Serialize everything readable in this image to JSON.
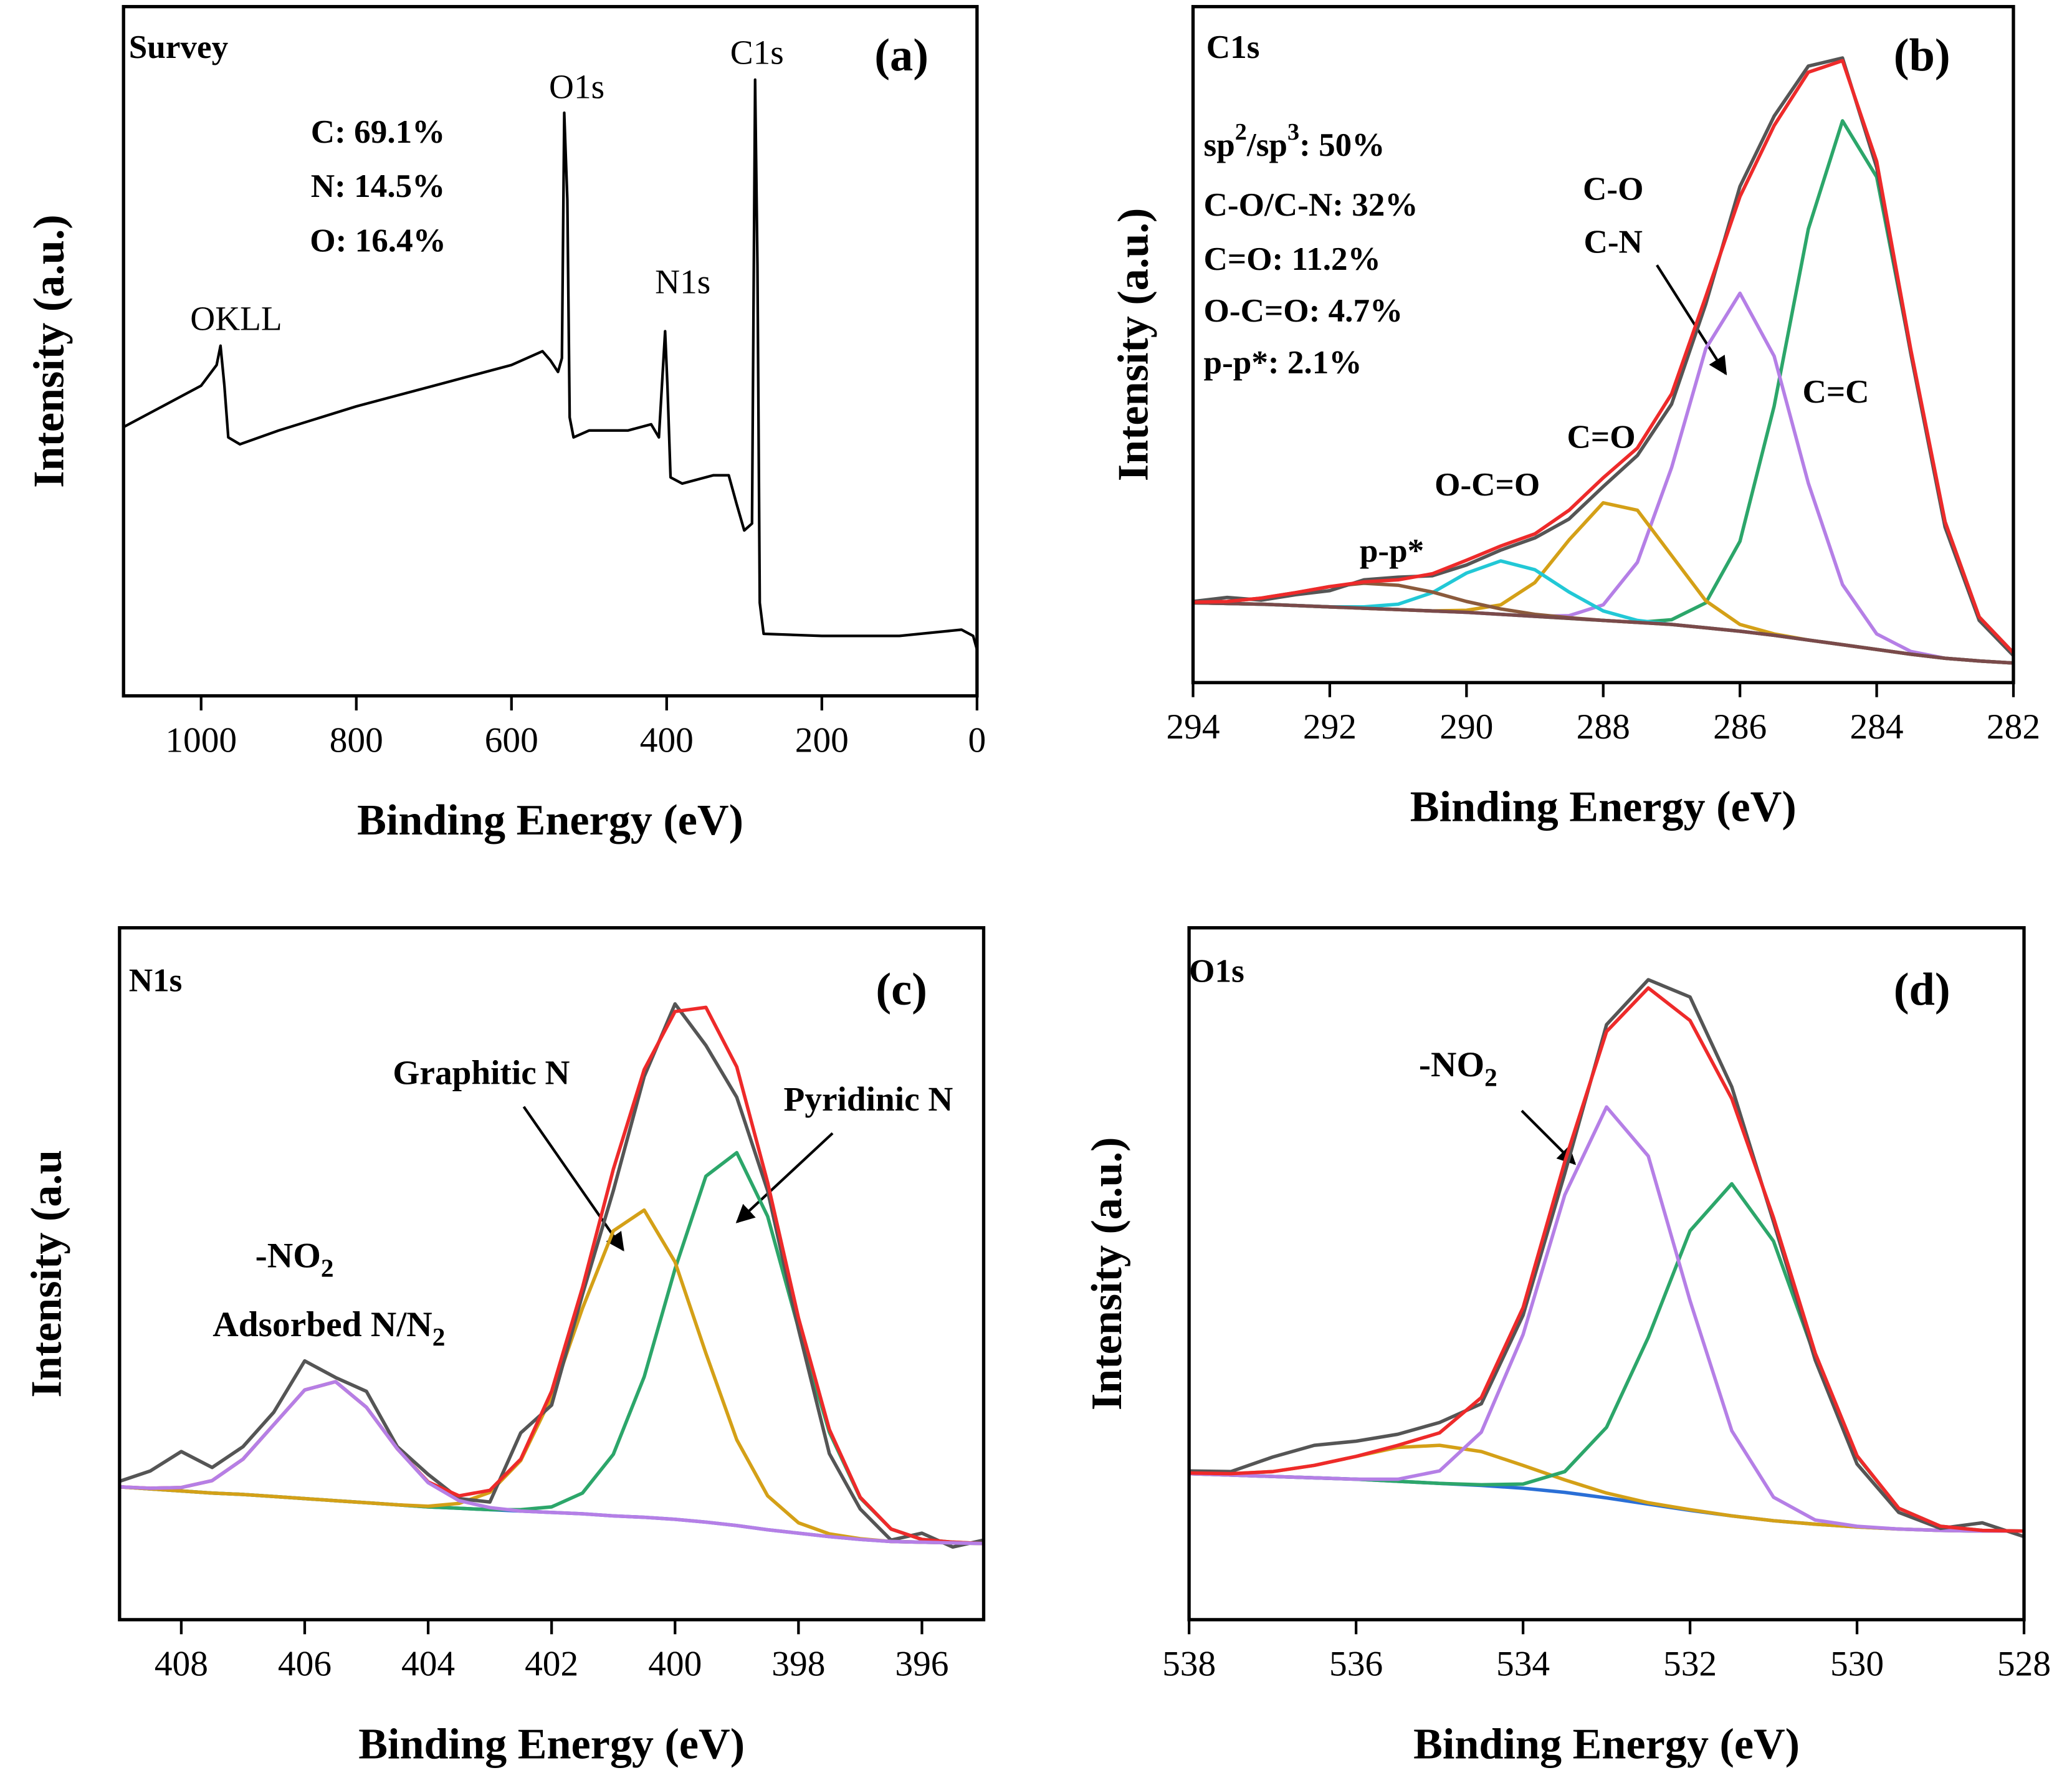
{
  "chart_data": [
    {
      "type": "line",
      "title": "Survey",
      "panel_label": "(a)",
      "xlabel": "Binding Energy (eV)",
      "ylabel": "Intensity (a.u.)",
      "xlim": [
        1100,
        0
      ],
      "xticks": [
        1000,
        800,
        600,
        400,
        200,
        0
      ],
      "ylim": [
        0,
        100
      ],
      "x": [
        1100,
        1050,
        1000,
        980,
        975,
        970,
        965,
        950,
        900,
        800,
        700,
        600,
        560,
        550,
        540,
        535,
        532,
        528,
        525,
        520,
        500,
        450,
        420,
        410,
        402,
        399,
        395,
        380,
        340,
        320,
        310,
        300,
        290,
        286,
        283,
        280,
        275,
        200,
        100,
        20,
        5,
        0
      ],
      "series": [
        {
          "color": "#000000",
          "values": [
            39,
            42,
            45,
            48,
            50.8,
            45,
            37.5,
            36.5,
            38.5,
            42,
            45,
            48,
            50,
            48.7,
            47,
            49,
            84.6,
            72,
            40.4,
            37.5,
            38.5,
            38.5,
            39.4,
            37.5,
            52.9,
            45,
            31.7,
            30.8,
            32,
            32,
            27.9,
            24,
            25,
            89.4,
            62.5,
            13.5,
            9,
            8.7,
            8.7,
            9.6,
            8.7,
            6.7
          ]
        }
      ],
      "annotations": [
        "O1s",
        "C1s",
        "N1s",
        "OKLL",
        "C: 69.1%",
        "N: 14.5%",
        "O: 16.4%"
      ]
    },
    {
      "type": "line",
      "title": "C1s",
      "panel_label": "(b)",
      "xlabel": "Binding Energy (eV)",
      "ylabel": "Intensity (a.u.)",
      "xlim": [
        294,
        282
      ],
      "xticks": [
        294,
        292,
        290,
        288,
        286,
        284,
        282
      ],
      "ylim": [
        0,
        100
      ],
      "x": [
        294,
        293.5,
        293,
        292.5,
        292,
        291.5,
        291,
        290.5,
        290,
        289.5,
        289,
        288.5,
        288,
        287.5,
        287,
        286.5,
        286,
        285.5,
        285,
        284.5,
        284,
        283.5,
        283,
        282.5,
        282
      ],
      "series": [
        {
          "color": "#2ca66a",
          "values": [
            11.8,
            11.7,
            11.6,
            11.4,
            11.2,
            11.0,
            10.8,
            10.6,
            10.4,
            10.1,
            9.8,
            9.5,
            9.2,
            8.9,
            9.3,
            11.8,
            20.9,
            40.9,
            67.1,
            83.1,
            74.8,
            48.8,
            23.8,
            9.7,
            4.4
          ]
        },
        {
          "color": "#b57fe6",
          "values": [
            11.8,
            11.7,
            11.6,
            11.4,
            11.2,
            11.0,
            10.8,
            10.6,
            10.4,
            10.1,
            9.8,
            9.9,
            11.5,
            17.8,
            31.8,
            49.4,
            57.6,
            48.3,
            29.5,
            14.5,
            7.2,
            4.6,
            3.6,
            3.2,
            2.9
          ]
        },
        {
          "color": "#d4a017",
          "values": [
            11.8,
            11.7,
            11.6,
            11.4,
            11.2,
            11.0,
            10.8,
            10.6,
            10.7,
            11.5,
            14.8,
            21.1,
            26.6,
            25.5,
            18.8,
            12.1,
            8.6,
            7.2,
            6.3,
            5.6,
            4.9,
            4.2,
            3.6,
            3.2,
            2.9
          ]
        },
        {
          "color": "#22c8d6",
          "values": [
            11.8,
            11.7,
            11.6,
            11.4,
            11.2,
            11.2,
            11.6,
            13.3,
            16.2,
            18.0,
            16.7,
            13.4,
            10.6,
            9.2,
            8.6,
            8.1,
            7.6,
            7.0,
            6.3,
            5.6,
            4.9,
            4.2,
            3.6,
            3.2,
            2.9
          ]
        },
        {
          "color": "#8b5a3c",
          "values": [
            11.9,
            12.0,
            12.5,
            13.3,
            14.2,
            14.7,
            14.4,
            13.4,
            12.0,
            10.9,
            10.1,
            9.6,
            9.2,
            8.9,
            8.6,
            8.1,
            7.6,
            7.0,
            6.3,
            5.6,
            4.9,
            4.2,
            3.6,
            3.2,
            2.9
          ]
        },
        {
          "color": "#7a4a4a",
          "values": [
            11.8,
            11.7,
            11.6,
            11.4,
            11.2,
            11.0,
            10.8,
            10.6,
            10.4,
            10.1,
            9.8,
            9.5,
            9.2,
            8.9,
            8.6,
            8.1,
            7.6,
            7.0,
            6.3,
            5.6,
            4.9,
            4.2,
            3.6,
            3.2,
            2.9
          ]
        },
        {
          "color": "#555555",
          "values": [
            12.0,
            12.6,
            12.2,
            13.0,
            13.6,
            15.2,
            15.6,
            15.8,
            17.4,
            19.6,
            21.4,
            24.2,
            29.0,
            33.6,
            41.2,
            56.0,
            73.4,
            83.8,
            91.2,
            92.4,
            76.2,
            48.6,
            23.0,
            9.2,
            4.0
          ]
        },
        {
          "color": "#ee2a2a",
          "values": [
            11.9,
            12.0,
            12.5,
            13.3,
            14.2,
            14.9,
            15.2,
            16.1,
            18.1,
            20.2,
            22.0,
            25.5,
            30.3,
            34.7,
            42.7,
            57.1,
            71.9,
            82.4,
            90.3,
            92.0,
            77.1,
            49.2,
            23.8,
            9.7,
            4.4
          ]
        }
      ],
      "annotations": [
        "sp2/sp3: 50%",
        "C-O/C-N: 32%",
        "C=O: 11.2%",
        "O-C=O: 4.7%",
        "p-p*: 2.1%",
        "C-O",
        "C-N",
        "C=C",
        "C=O",
        "O-C=O",
        "p-p*"
      ]
    },
    {
      "type": "line",
      "title": "N1s",
      "panel_label": "(c)",
      "xlabel": "Binding Energy (eV)",
      "ylabel": "Intensity (a.u",
      "xlim": [
        409,
        395
      ],
      "xticks": [
        408,
        406,
        404,
        402,
        400,
        398,
        396
      ],
      "ylim": [
        0,
        100
      ],
      "x": [
        409,
        408.5,
        408,
        407.5,
        407,
        406.5,
        406,
        405.5,
        405,
        404.5,
        404,
        403.5,
        403,
        402.5,
        402,
        401.5,
        401,
        400.5,
        400,
        399.5,
        399,
        398.5,
        398,
        397.5,
        397,
        396.5,
        396,
        395.5,
        395
      ],
      "series": [
        {
          "color": "#2a6fd6",
          "values": [
            19.2,
            18.9,
            18.6,
            18.3,
            18.1,
            17.8,
            17.5,
            17.2,
            16.9,
            16.6,
            16.3,
            16.1,
            15.9,
            15.7,
            15.5,
            15.3,
            15.0,
            14.8,
            14.5,
            14.1,
            13.6,
            13.0,
            12.5,
            12.0,
            11.6,
            11.3,
            11.2,
            11.1,
            11.0
          ]
        },
        {
          "color": "#2ca66a",
          "values": [
            19.2,
            18.9,
            18.6,
            18.3,
            18.1,
            17.8,
            17.5,
            17.2,
            16.9,
            16.6,
            16.3,
            16.1,
            15.9,
            15.9,
            16.3,
            18.3,
            23.9,
            35.1,
            50.7,
            64.1,
            67.5,
            58.3,
            42.1,
            27.1,
            17.6,
            13.1,
            11.6,
            11.2,
            11.0
          ]
        },
        {
          "color": "#d4a017",
          "values": [
            19.2,
            18.9,
            18.6,
            18.3,
            18.1,
            17.8,
            17.5,
            17.2,
            16.9,
            16.6,
            16.4,
            16.8,
            18.4,
            23.0,
            32.2,
            45.0,
            56.2,
            59.2,
            51.7,
            38.5,
            26.0,
            17.9,
            14.0,
            12.4,
            11.7,
            11.3,
            11.2,
            11.1,
            11.0
          ]
        },
        {
          "color": "#555555",
          "values": [
            20.0,
            21.5,
            24.3,
            22.0,
            25.0,
            30.0,
            37.4,
            35.0,
            33.0,
            25.0,
            21.0,
            17.5,
            17.0,
            27.0,
            31.0,
            47.0,
            62.0,
            78.5,
            89.0,
            83.0,
            75.5,
            62.0,
            42.0,
            24.0,
            16.0,
            11.5,
            12.5,
            10.5,
            11.5
          ]
        },
        {
          "color": "#ee2a2a",
          "values": [
            19.2,
            19.0,
            19.1,
            20.1,
            23.2,
            28.2,
            33.2,
            34.4,
            30.7,
            24.7,
            19.9,
            17.9,
            18.7,
            23.2,
            33.0,
            48.0,
            65.1,
            79.5,
            87.9,
            88.5,
            79.9,
            63.2,
            43.6,
            27.5,
            17.7,
            13.1,
            11.6,
            11.2,
            11.0
          ]
        },
        {
          "color": "#b57fe6",
          "values": [
            19.2,
            19.0,
            19.1,
            20.1,
            23.2,
            28.2,
            33.2,
            34.4,
            30.7,
            24.7,
            19.8,
            17.2,
            16.2,
            15.7,
            15.5,
            15.3,
            15.0,
            14.8,
            14.5,
            14.1,
            13.6,
            13.0,
            12.5,
            12.0,
            11.6,
            11.3,
            11.2,
            11.1,
            11.0
          ]
        }
      ],
      "annotations": [
        "Graphitic N",
        "Pyridinic N",
        "-NO2",
        "Adsorbed N/N2"
      ]
    },
    {
      "type": "line",
      "title": "O1s",
      "panel_label": "(d)",
      "xlabel": "Binding Energy (eV)",
      "ylabel": "Intensity (a.u.)",
      "xlim": [
        538,
        528
      ],
      "xticks": [
        538,
        536,
        534,
        532,
        530,
        528
      ],
      "ylim": [
        0,
        100
      ],
      "x": [
        538,
        537.5,
        537,
        536.5,
        536,
        535.5,
        535,
        534.5,
        534,
        533.5,
        533,
        532.5,
        532,
        531.5,
        531,
        530.5,
        530,
        529.5,
        529,
        528.5,
        528
      ],
      "series": [
        {
          "color": "#2a6fd6",
          "values": [
            21.1,
            20.9,
            20.7,
            20.5,
            20.3,
            20.0,
            19.7,
            19.4,
            19.0,
            18.4,
            17.6,
            16.7,
            15.8,
            15.0,
            14.3,
            13.8,
            13.4,
            13.1,
            12.9,
            12.8,
            12.8
          ]
        },
        {
          "color": "#d4a017",
          "values": [
            21.2,
            21.1,
            21.4,
            22.3,
            23.6,
            24.9,
            25.2,
            24.3,
            22.3,
            20.2,
            18.3,
            16.9,
            15.9,
            15.0,
            14.3,
            13.8,
            13.4,
            13.1,
            12.9,
            12.8,
            12.8
          ]
        },
        {
          "color": "#2ca66a",
          "values": [
            21.1,
            20.9,
            20.7,
            20.5,
            20.3,
            20.0,
            19.7,
            19.5,
            19.6,
            21.4,
            27.8,
            40.8,
            56.2,
            63.0,
            54.7,
            37.9,
            23.6,
            16.1,
            13.5,
            12.9,
            12.8
          ]
        },
        {
          "color": "#b57fe6",
          "values": [
            21.1,
            20.9,
            20.7,
            20.5,
            20.3,
            20.3,
            21.5,
            27.1,
            41.2,
            61.4,
            74.1,
            67.0,
            46.1,
            27.3,
            17.7,
            14.4,
            13.5,
            13.1,
            12.9,
            12.8,
            12.8
          ]
        },
        {
          "color": "#555555",
          "values": [
            21.5,
            21.4,
            23.5,
            25.2,
            25.8,
            26.8,
            28.5,
            31.2,
            44.0,
            64.5,
            86.0,
            92.5,
            90.0,
            77.0,
            57.5,
            37.5,
            22.5,
            15.5,
            13.2,
            14.0,
            12.0
          ]
        },
        {
          "color": "#ee2a2a",
          "values": [
            21.2,
            21.1,
            21.4,
            22.3,
            23.6,
            25.2,
            27.0,
            32.1,
            45.1,
            66.2,
            85.0,
            91.3,
            86.6,
            75.3,
            58.1,
            38.5,
            23.7,
            16.1,
            13.5,
            12.9,
            12.8
          ]
        }
      ],
      "annotations": [
        "-NO2"
      ]
    }
  ]
}
